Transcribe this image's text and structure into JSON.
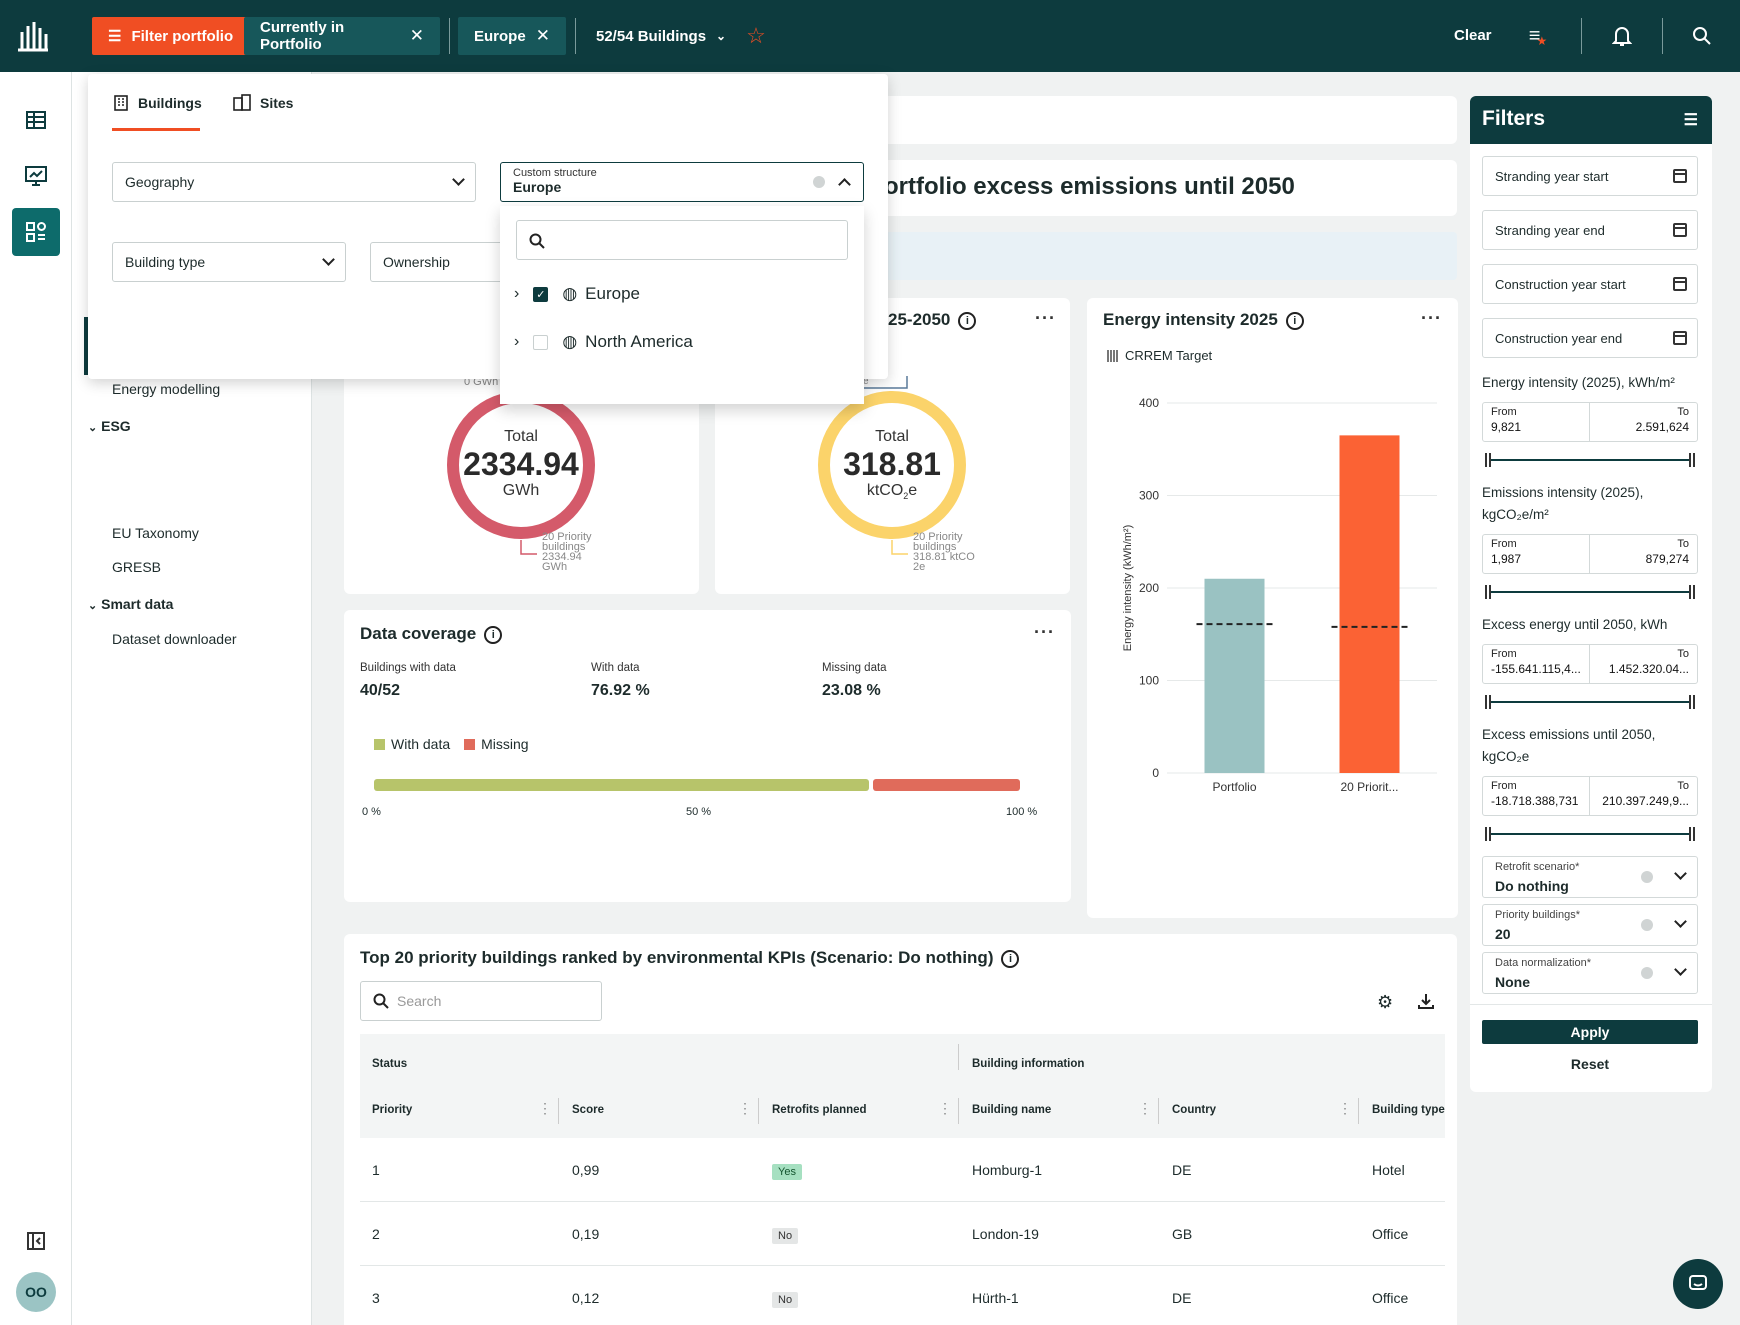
{
  "topbar": {
    "filter_portfolio": "Filter portfolio",
    "chip_portfolio": "Currently in Portfolio",
    "chip_region": "Europe",
    "buildings_count": "52/54 Buildings",
    "clear": "Clear",
    "close_glyph": "✕"
  },
  "nav": {
    "items": [
      "Energy modelling",
      "EU Taxonomy",
      "GRESB",
      "Dataset downloader"
    ],
    "groups": [
      "ESG",
      "Smart data"
    ]
  },
  "panel": {
    "tab_buildings": "Buildings",
    "tab_sites": "Sites",
    "geography": "Geography",
    "custom_structure_label": "Custom structure",
    "custom_structure_value": "Europe",
    "building_type": "Building type",
    "ownership": "Ownership",
    "tree": [
      {
        "label": "Europe",
        "checked": true
      },
      {
        "label": "North America",
        "checked": false
      }
    ]
  },
  "headline": "ortfolio excess emissions until 2050",
  "energy_donut": {
    "total_label": "Total",
    "value": "2334.94",
    "unit": "GWh",
    "top_label": "0 GWh",
    "legend_lines": [
      "20 Priority",
      "buildings",
      "2334.94",
      "GWh"
    ]
  },
  "emission_card": {
    "title": "25-2050",
    "total_label": "Total",
    "value": "318.81",
    "unit_main": "ktCO",
    "unit_sub": "2",
    "unit_tail": "e",
    "top_label": "e",
    "legend_lines": [
      "20 Priority",
      "buildings",
      "318.81 ktCO",
      "2e"
    ]
  },
  "coverage": {
    "title": "Data coverage",
    "stats": [
      {
        "label": "Buildings with data",
        "value": "40/52"
      },
      {
        "label": "With data",
        "value": "76.92 %"
      },
      {
        "label": "Missing data",
        "value": "23.08 %"
      }
    ],
    "legend_with": "With data",
    "legend_missing": "Missing",
    "with_fraction": 0.7692,
    "ticks": [
      "0 %",
      "50 %",
      "100 %"
    ],
    "colors": {
      "with": "#b7c46a",
      "missing": "#e06b5b"
    }
  },
  "chart_data": {
    "type": "bar",
    "title": "Energy intensity 2025",
    "legend": "CRREM Target",
    "ylabel": "Energy intensity (kWh/m²)",
    "categories": [
      "Portfolio",
      "20 Priorit..."
    ],
    "values": [
      210,
      365
    ],
    "targets": [
      161,
      158
    ],
    "ylim": [
      0,
      400
    ],
    "yticks": [
      0,
      100,
      200,
      300,
      400
    ],
    "colors": [
      "#9ac2c2",
      "#fb6234"
    ]
  },
  "table": {
    "title": "Top 20 priority buildings ranked by environmental KPIs (Scenario: Do nothing)",
    "search_placeholder": "Search",
    "group_status": "Status",
    "group_building": "Building information",
    "columns": [
      "Priority",
      "Score",
      "Retrofits planned",
      "Building name",
      "Country",
      "Building type"
    ],
    "rows": [
      {
        "priority": "1",
        "score": "0,99",
        "retrofit": "Yes",
        "name": "Homburg-1",
        "country": "DE",
        "type": "Hotel"
      },
      {
        "priority": "2",
        "score": "0,19",
        "retrofit": "No",
        "name": "London-19",
        "country": "GB",
        "type": "Office"
      },
      {
        "priority": "3",
        "score": "0,12",
        "retrofit": "No",
        "name": "Hürth-1",
        "country": "DE",
        "type": "Office"
      }
    ]
  },
  "filters": {
    "title": "Filters",
    "date_fields": [
      "Stranding year start",
      "Stranding year end",
      "Construction year start",
      "Construction year end"
    ],
    "ranges": [
      {
        "label": "Energy intensity (2025), kWh/m²",
        "from": "9,821",
        "to": "2.591,624"
      },
      {
        "label": "Emissions intensity (2025), kgCO₂e/m²",
        "from": "1,987",
        "to": "879,274"
      },
      {
        "label": "Excess energy until 2050, kWh",
        "from": "-155.641.115,4...",
        "to": "1.452.320.04..."
      },
      {
        "label": "Excess emissions until 2050, kgCO₂e",
        "from": "-18.718.388,731",
        "to": "210.397.249,9..."
      }
    ],
    "from_label": "From",
    "to_label": "To",
    "selects": [
      {
        "label": "Retrofit scenario*",
        "value": "Do nothing"
      },
      {
        "label": "Priority buildings*",
        "value": "20"
      },
      {
        "label": "Data normalization*",
        "value": "None"
      }
    ],
    "apply": "Apply",
    "reset": "Reset"
  },
  "footer": {
    "avatar": "OO"
  }
}
